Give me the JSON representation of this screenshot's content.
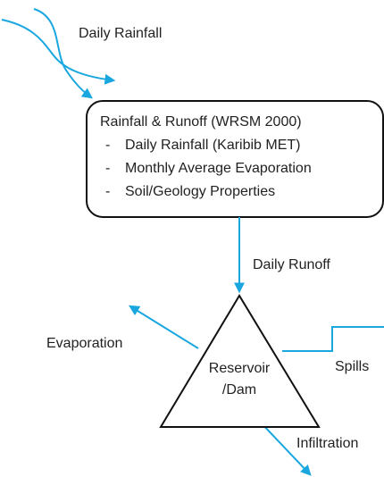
{
  "nodes": [
    {
      "label": "Rainfall & Runoff (WRSM 2000)",
      "items": [
        "Daily Rainfall (Karibib MET)",
        "Monthly Average Evaporation",
        "Soil/Geology Properties"
      ],
      "bullet": "-"
    },
    {
      "label": [
        "Reservoir",
        "/Dam"
      ]
    }
  ],
  "edges": [
    {
      "label": "Daily Rainfall"
    },
    {
      "label": "Daily Runoff"
    },
    {
      "label": "Evaporation"
    },
    {
      "label": "Spills"
    },
    {
      "label": "Infiltration"
    }
  ]
}
